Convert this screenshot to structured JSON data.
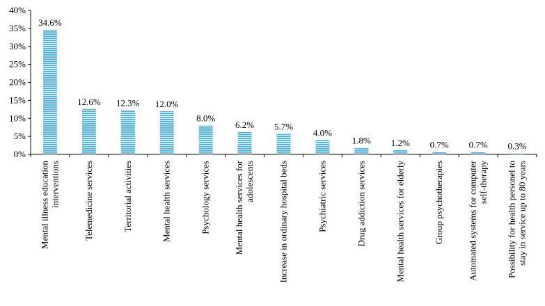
{
  "chart_data": {
    "type": "bar",
    "title": "",
    "xlabel": "",
    "ylabel": "",
    "ylim": [
      0,
      40
    ],
    "y_ticks": [
      "0%",
      "5%",
      "10%",
      "15%",
      "20%",
      "25%",
      "30%",
      "35%",
      "40%"
    ],
    "grid": false,
    "legend": "none",
    "bar_color": "#4db8e8",
    "bar_pattern": "horizontal-stripes",
    "categories": [
      [
        "Mental illness education",
        "interventions"
      ],
      [
        "Telemedicine services"
      ],
      [
        "Territorial activities"
      ],
      [
        "Mental health services"
      ],
      [
        "Psychology services"
      ],
      [
        "Mental health services for",
        "adolescents"
      ],
      [
        "Increase in ordinary hospital beds"
      ],
      [
        "Psychiatric services"
      ],
      [
        "Drug addiction services"
      ],
      [
        "Mental health services for elderly"
      ],
      [
        "Group psychotherapies"
      ],
      [
        "Automated systems for computer",
        "self-therapy"
      ],
      [
        "Possibility for health personel to",
        "stay in service up to 80 years"
      ]
    ],
    "values": [
      34.6,
      12.6,
      12.3,
      12.0,
      8.0,
      6.2,
      5.7,
      4.0,
      1.8,
      1.2,
      0.7,
      0.7,
      0.3
    ],
    "value_labels": [
      "34.6%",
      "12.6%",
      "12.3%",
      "12.0%",
      "8.0%",
      "6.2%",
      "5.7%",
      "4.0%",
      "1.8%",
      "1.2%",
      "0.7%",
      "0.7%",
      "0.3%"
    ]
  }
}
